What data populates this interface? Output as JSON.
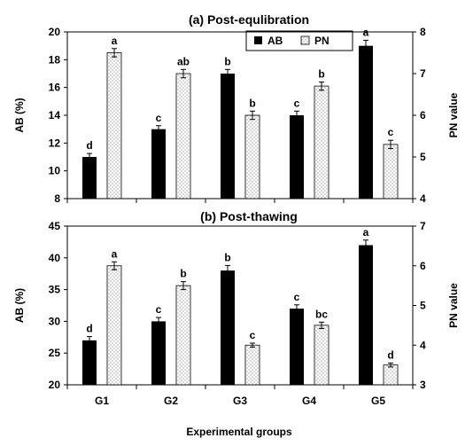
{
  "xlabel": "Experimental groups",
  "legend": {
    "ab": "AB",
    "pn": "PN"
  },
  "chart_data": [
    {
      "type": "bar",
      "title": "(a) Post-equlibration",
      "categories": [
        "G1",
        "G2",
        "G3",
        "G4",
        "G5"
      ],
      "ylabel": "AB (%)",
      "y2label": "PN value",
      "ylim": [
        8,
        20
      ],
      "y2lim": [
        4,
        8
      ],
      "yticks": [
        8,
        10,
        12,
        14,
        16,
        18,
        20
      ],
      "y2ticks": [
        4,
        5,
        6,
        7,
        8
      ],
      "legend_position": "top-right",
      "series": [
        {
          "name": "AB",
          "axis": "left",
          "fill": "solid-black",
          "values": [
            11.0,
            13.0,
            17.0,
            14.0,
            19.0
          ],
          "errors": [
            0.25,
            0.25,
            0.3,
            0.3,
            0.4
          ],
          "letters": [
            "d",
            "c",
            "b",
            "c",
            "a"
          ]
        },
        {
          "name": "PN",
          "axis": "right",
          "fill": "dotted-white",
          "values": [
            7.5,
            7.0,
            6.0,
            6.7,
            5.3
          ],
          "errors": [
            0.1,
            0.1,
            0.1,
            0.1,
            0.1
          ],
          "letters": [
            "a",
            "ab",
            "b",
            "b",
            "c"
          ]
        }
      ]
    },
    {
      "type": "bar",
      "title": "(b) Post-thawing",
      "categories": [
        "G1",
        "G2",
        "G3",
        "G4",
        "G5"
      ],
      "ylabel": "AB (%)",
      "y2label": "PN value",
      "ylim": [
        20,
        45
      ],
      "y2lim": [
        3,
        7
      ],
      "yticks": [
        20,
        25,
        30,
        35,
        40,
        45
      ],
      "y2ticks": [
        3,
        4,
        5,
        6,
        7
      ],
      "series": [
        {
          "name": "AB",
          "axis": "left",
          "fill": "solid-black",
          "values": [
            27.0,
            30.0,
            38.0,
            32.0,
            42.0
          ],
          "errors": [
            0.6,
            0.6,
            0.8,
            0.6,
            0.8
          ],
          "letters": [
            "d",
            "c",
            "b",
            "c",
            "a"
          ]
        },
        {
          "name": "PN",
          "axis": "right",
          "fill": "dotted-white",
          "values": [
            6.0,
            5.5,
            4.0,
            4.5,
            3.5
          ],
          "errors": [
            0.1,
            0.1,
            0.05,
            0.08,
            0.05
          ],
          "letters": [
            "a",
            "b",
            "c",
            "bc",
            "d"
          ]
        }
      ]
    }
  ]
}
